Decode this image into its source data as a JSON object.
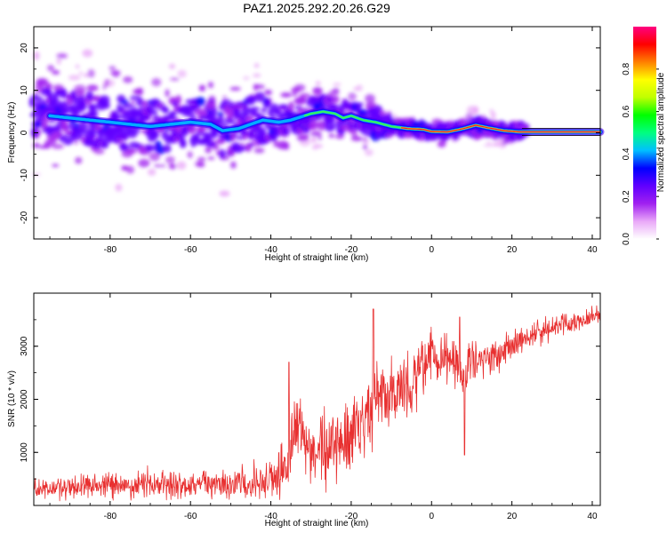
{
  "chart_data": [
    {
      "type": "heatmap",
      "title": "PAZ1.2025.292.20.26.G29",
      "xlabel": "Height of straight line (km)",
      "ylabel": "Frequency (Hz)",
      "xlim": [
        -99,
        42
      ],
      "ylim": [
        -25,
        25
      ],
      "x_ticks": [
        -80,
        -60,
        -40,
        -20,
        0,
        20,
        40
      ],
      "y_ticks": [
        20,
        10,
        0,
        -10,
        -20
      ],
      "ridge": {
        "description_points": "dominant frequency ridge (Hz) vs height (km)",
        "x": [
          -95,
          -90,
          -85,
          -80,
          -75,
          -70,
          -65,
          -60,
          -55,
          -52,
          -48,
          -45,
          -42,
          -38,
          -35,
          -30,
          -27,
          -24,
          -22,
          -20,
          -17,
          -14,
          -10,
          -6,
          -2,
          0,
          4,
          8,
          11,
          14,
          18,
          22,
          30,
          42
        ],
        "y": [
          4,
          3.5,
          3,
          2.5,
          2,
          1.5,
          2,
          2.5,
          2,
          0.5,
          1,
          2,
          3,
          2.5,
          3,
          4.5,
          5,
          4.5,
          3.5,
          4,
          3,
          2.5,
          1.5,
          1,
          0.8,
          0.3,
          0.2,
          1,
          1.8,
          1.2,
          0.5,
          0.2,
          0.2,
          0.2
        ]
      },
      "colorbar": {
        "label": "Normalized spectral amplitude",
        "range": [
          0.0,
          1.0
        ],
        "ticks": [
          "0.0",
          "0.2",
          "0.4",
          "0.6",
          "0.8"
        ],
        "colors": [
          "#ffffff",
          "#e9a8f8",
          "#a020f0",
          "#6000ff",
          "#0000ff",
          "#00c0ff",
          "#00ff80",
          "#00ff00",
          "#c0ff00",
          "#ffff00",
          "#ff8000",
          "#ff0000",
          "#ff0080"
        ]
      }
    },
    {
      "type": "line",
      "xlabel": "Height of straight line (km)",
      "ylabel": "SNR (10 * v/v)",
      "xlim": [
        -99,
        42
      ],
      "ylim": [
        0,
        4000
      ],
      "x_ticks": [
        -80,
        -60,
        -40,
        -20,
        0,
        20,
        40
      ],
      "y_ticks": [
        1000,
        2000,
        3000
      ],
      "color": "#e83030",
      "trend_x": [
        -99,
        -80,
        -60,
        -40,
        -36,
        -34,
        -30,
        -25,
        -20,
        -15,
        -14,
        -10,
        -5,
        0,
        5,
        7,
        8,
        10,
        15,
        20,
        30,
        42
      ],
      "trend_y": [
        300,
        380,
        380,
        450,
        700,
        1500,
        1100,
        1000,
        1300,
        1700,
        2200,
        2000,
        2200,
        2800,
        2800,
        2600,
        2400,
        2700,
        2800,
        3000,
        3350,
        3600
      ],
      "spread_x": [
        -99,
        -60,
        -40,
        -35,
        -25,
        -15,
        -5,
        5,
        15,
        25,
        42
      ],
      "spread": [
        220,
        260,
        320,
        650,
        750,
        700,
        600,
        450,
        350,
        250,
        150
      ],
      "peaks": [
        {
          "x": -35.5,
          "y": 2700
        },
        {
          "x": -14.5,
          "y": 3700
        },
        {
          "x": 7,
          "y": 3550
        },
        {
          "x": 8.2,
          "y": 950
        }
      ]
    }
  ]
}
